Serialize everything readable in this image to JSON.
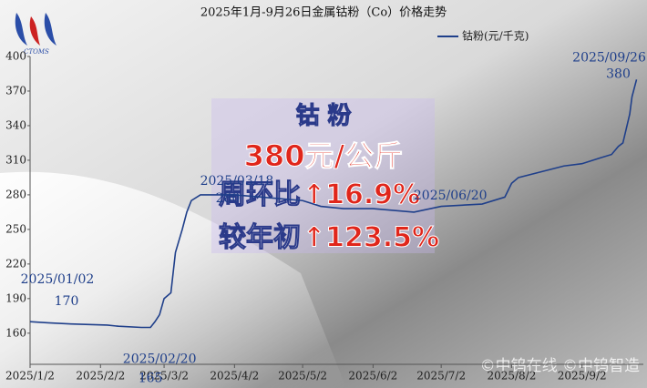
{
  "chart_data": {
    "type": "line",
    "title": "2025年1月-9月26日金属钴粉（Co）价格走势",
    "logo": "CTOMS",
    "series": [
      {
        "name": "钴粉(元/千克)",
        "color": "#1f3f8a",
        "x": [
          "2025-01-02",
          "2025-01-10",
          "2025-01-20",
          "2025-02-05",
          "2025-02-10",
          "2025-02-20",
          "2025-02-24",
          "2025-02-26",
          "2025-02-28",
          "2025-03-02",
          "2025-03-05",
          "2025-03-07",
          "2025-03-10",
          "2025-03-12",
          "2025-03-14",
          "2025-03-18",
          "2025-04-02",
          "2025-04-20",
          "2025-05-02",
          "2025-05-10",
          "2025-05-20",
          "2025-06-02",
          "2025-06-20",
          "2025-07-02",
          "2025-07-20",
          "2025-07-30",
          "2025-08-02",
          "2025-08-05",
          "2025-08-15",
          "2025-08-25",
          "2025-09-02",
          "2025-09-10",
          "2025-09-15",
          "2025-09-18",
          "2025-09-20",
          "2025-09-23",
          "2025-09-24",
          "2025-09-26"
        ],
        "values": [
          170,
          169,
          168,
          167,
          166,
          165,
          165,
          170,
          176,
          190,
          195,
          230,
          250,
          265,
          275,
          280,
          280,
          277,
          275,
          270,
          268,
          268,
          265,
          270,
          272,
          278,
          290,
          295,
          300,
          305,
          307,
          312,
          315,
          322,
          325,
          350,
          365,
          380
        ]
      }
    ],
    "xlim": [
      "2025-01-02",
      "2025-09-29"
    ],
    "xticks": [
      {
        "value": "2025-01-02",
        "label": "2025/1/2"
      },
      {
        "value": "2025-02-02",
        "label": "2025/2/2"
      },
      {
        "value": "2025-03-02",
        "label": "2025/3/2"
      },
      {
        "value": "2025-04-02",
        "label": "2025/4/2"
      },
      {
        "value": "2025-05-02",
        "label": "2025/5/2"
      },
      {
        "value": "2025-06-02",
        "label": "2025/6/2"
      },
      {
        "value": "2025-07-02",
        "label": "2025/7/2"
      },
      {
        "value": "2025-08-02",
        "label": "2025/8/2"
      },
      {
        "value": "2025-09-02",
        "label": "2025/9/2"
      }
    ],
    "ylim": [
      133,
      400
    ],
    "yticks": [
      160,
      190,
      220,
      250,
      280,
      310,
      340,
      370,
      400
    ],
    "annotations": [
      {
        "x": "2025-01-02",
        "label": "2025/01/02",
        "value": 170
      },
      {
        "x": "2025-02-20",
        "label": "2025/02/20",
        "value": 165
      },
      {
        "x": "2025-03-18",
        "label": "2025/03/18",
        "value": 280
      },
      {
        "x": "2025-06-20",
        "label": "2025/06/20"
      },
      {
        "x": "2025-09-26",
        "label": "2025/09/26",
        "value": 380
      }
    ],
    "overlay": {
      "title": "钴 粉",
      "price": "380元/公斤",
      "wow_label": "周环比",
      "wow_value": "↑16.9%",
      "ytd_label": "较年初",
      "ytd_value": "↑123.5%"
    },
    "watermark": "©中钨在线 ©中钨智造"
  }
}
